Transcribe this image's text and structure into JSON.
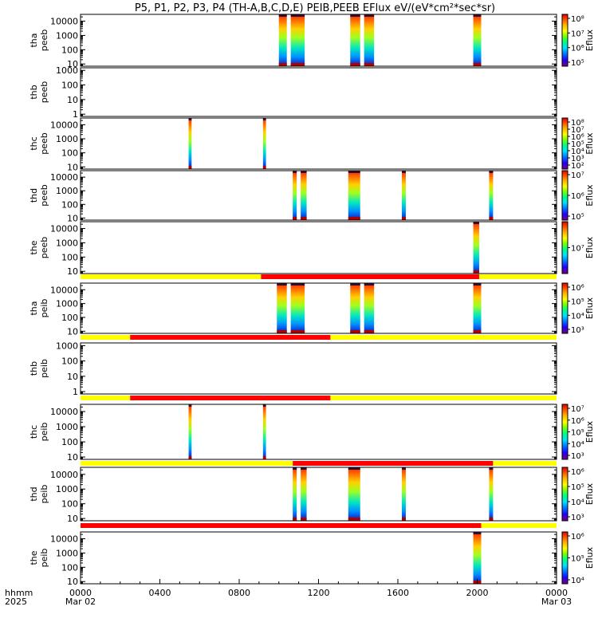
{
  "title": "P5, P1, P2, P3, P4 (TH-A,B,C,D,E) PEIB,PEEB EFlux eV/(eV*cm²*sec*sr)",
  "colors": {
    "background": "#ffffff",
    "axis": "#000000",
    "status_yellow": "#ffff00",
    "status_red": "#ff0000",
    "colormap": [
      "#7a007a",
      "#2000ff",
      "#0080ff",
      "#00e0ff",
      "#00ff80",
      "#80ff00",
      "#ffff00",
      "#ffb000",
      "#ff5000",
      "#e00000"
    ]
  },
  "footer": {
    "row1_label": "hhmm",
    "row2_label": "2025",
    "date_start": "Mar 02",
    "date_end": "Mar 03"
  },
  "chart_data": {
    "type": "heatmap",
    "x_range_hours": [
      0,
      24
    ],
    "x_ticks": [
      {
        "hours": 0,
        "label": "0000"
      },
      {
        "hours": 4,
        "label": "0400"
      },
      {
        "hours": 8,
        "label": "0800"
      },
      {
        "hours": 12,
        "label": "1200"
      },
      {
        "hours": 16,
        "label": "1600"
      },
      {
        "hours": 20,
        "label": "2000"
      },
      {
        "hours": 24,
        "label": "0000"
      }
    ],
    "panels": [
      {
        "id": "tha-peeb",
        "ylabel": [
          "tha",
          "peeb"
        ],
        "ylim": [
          7,
          30000
        ],
        "yticks": [
          {
            "v": 10,
            "label": "10"
          },
          {
            "v": 100,
            "label": "100"
          },
          {
            "v": 1000,
            "label": "1000"
          },
          {
            "v": 10000,
            "label": "10000"
          }
        ],
        "cb_title": "Eflux",
        "cb_ticks": [
          "10⁸",
          "10⁷",
          "10⁶",
          "10⁵"
        ],
        "status_bar": [],
        "data_intervals": [
          [
            10.0,
            10.4
          ],
          [
            10.6,
            11.3
          ],
          [
            13.6,
            14.1
          ],
          [
            14.3,
            14.8
          ],
          [
            19.8,
            20.2
          ]
        ]
      },
      {
        "id": "thb-peeb",
        "ylabel": [
          "thb",
          "peeb"
        ],
        "ylim": [
          0.7,
          1500
        ],
        "yticks": [
          {
            "v": 1,
            "label": "1"
          },
          {
            "v": 10,
            "label": "10"
          },
          {
            "v": 100,
            "label": "100"
          },
          {
            "v": 1000,
            "label": "1000"
          }
        ],
        "cb_title": "",
        "cb_ticks": [],
        "status_bar": [],
        "data_intervals": []
      },
      {
        "id": "thc-peeb",
        "ylabel": [
          "thc",
          "peeb"
        ],
        "ylim": [
          7,
          30000
        ],
        "yticks": [
          {
            "v": 10,
            "label": "10"
          },
          {
            "v": 100,
            "label": "100"
          },
          {
            "v": 1000,
            "label": "1000"
          },
          {
            "v": 10000,
            "label": "10000"
          }
        ],
        "cb_title": "Eflux",
        "cb_ticks": [
          "10⁸",
          "10⁷",
          "10⁶",
          "10⁵",
          "10⁴",
          "10³",
          "10²"
        ],
        "status_bar": [],
        "data_intervals": [
          [
            5.45,
            5.6
          ],
          [
            9.2,
            9.35
          ]
        ]
      },
      {
        "id": "thd-peeb",
        "ylabel": [
          "thd",
          "peeb"
        ],
        "ylim": [
          7,
          30000
        ],
        "yticks": [
          {
            "v": 10,
            "label": "10"
          },
          {
            "v": 100,
            "label": "100"
          },
          {
            "v": 1000,
            "label": "1000"
          },
          {
            "v": 10000,
            "label": "10000"
          }
        ],
        "cb_title": "Eflux",
        "cb_ticks": [
          "10⁷",
          "10⁶",
          "10⁵"
        ],
        "status_bar": [],
        "data_intervals": [
          [
            10.7,
            10.9
          ],
          [
            11.1,
            11.4
          ],
          [
            13.5,
            14.1
          ],
          [
            16.2,
            16.4
          ],
          [
            20.6,
            20.8
          ]
        ]
      },
      {
        "id": "the-peeb",
        "ylabel": [
          "the",
          "peeb"
        ],
        "ylim": [
          7,
          30000
        ],
        "yticks": [
          {
            "v": 10,
            "label": "10"
          },
          {
            "v": 100,
            "label": "100"
          },
          {
            "v": 1000,
            "label": "1000"
          },
          {
            "v": 10000,
            "label": "10000"
          }
        ],
        "cb_title": "Eflux",
        "cb_ticks": [
          "10⁷"
        ],
        "status_bar": [],
        "data_intervals": [
          [
            19.8,
            20.1
          ]
        ]
      },
      {
        "id": "tha-peib",
        "ylabel": [
          "tha",
          "peib"
        ],
        "ylim": [
          7,
          30000
        ],
        "yticks": [
          {
            "v": 10,
            "label": "10"
          },
          {
            "v": 100,
            "label": "100"
          },
          {
            "v": 1000,
            "label": "1000"
          },
          {
            "v": 10000,
            "label": "10000"
          }
        ],
        "cb_title": "Eflux",
        "cb_ticks": [
          "10⁶",
          "10⁵",
          "10⁴",
          "10³"
        ],
        "status_bar": [
          {
            "start": 0,
            "end": 9.1,
            "state": "yellow"
          },
          {
            "start": 9.1,
            "end": 20.1,
            "state": "red"
          },
          {
            "start": 20.1,
            "end": 24,
            "state": "yellow"
          }
        ],
        "data_intervals": [
          [
            9.9,
            10.4
          ],
          [
            10.6,
            11.3
          ],
          [
            13.6,
            14.1
          ],
          [
            14.3,
            14.8
          ],
          [
            19.8,
            20.2
          ]
        ]
      },
      {
        "id": "thb-peib",
        "ylabel": [
          "thb",
          "peib"
        ],
        "ylim": [
          0.7,
          1500
        ],
        "yticks": [
          {
            "v": 1,
            "label": "1"
          },
          {
            "v": 10,
            "label": "10"
          },
          {
            "v": 100,
            "label": "100"
          },
          {
            "v": 1000,
            "label": "1000"
          }
        ],
        "cb_title": "",
        "cb_ticks": [],
        "status_bar": [
          {
            "start": 0,
            "end": 2.5,
            "state": "yellow"
          },
          {
            "start": 2.5,
            "end": 12.6,
            "state": "red"
          },
          {
            "start": 12.6,
            "end": 24,
            "state": "yellow"
          }
        ],
        "data_intervals": []
      },
      {
        "id": "thc-peib",
        "ylabel": [
          "thc",
          "peib"
        ],
        "ylim": [
          7,
          30000
        ],
        "yticks": [
          {
            "v": 10,
            "label": "10"
          },
          {
            "v": 100,
            "label": "100"
          },
          {
            "v": 1000,
            "label": "1000"
          },
          {
            "v": 10000,
            "label": "10000"
          }
        ],
        "cb_title": "Eflux",
        "cb_ticks": [
          "10⁷",
          "10⁶",
          "10⁵",
          "10⁴",
          "10³"
        ],
        "status_bar": [
          {
            "start": 0,
            "end": 2.5,
            "state": "yellow"
          },
          {
            "start": 2.5,
            "end": 12.6,
            "state": "red"
          },
          {
            "start": 12.6,
            "end": 24,
            "state": "yellow"
          }
        ],
        "data_intervals": [
          [
            5.45,
            5.6
          ],
          [
            9.2,
            9.35
          ]
        ]
      },
      {
        "id": "thd-peib",
        "ylabel": [
          "thd",
          "peib"
        ],
        "ylim": [
          7,
          30000
        ],
        "yticks": [
          {
            "v": 10,
            "label": "10"
          },
          {
            "v": 100,
            "label": "100"
          },
          {
            "v": 1000,
            "label": "1000"
          },
          {
            "v": 10000,
            "label": "10000"
          }
        ],
        "cb_title": "Eflux",
        "cb_ticks": [
          "10⁶",
          "10⁵",
          "10⁴",
          "10³"
        ],
        "status_bar": [
          {
            "start": 0,
            "end": 10.7,
            "state": "yellow"
          },
          {
            "start": 10.7,
            "end": 20.8,
            "state": "red"
          },
          {
            "start": 20.8,
            "end": 24,
            "state": "yellow"
          }
        ],
        "data_intervals": [
          [
            10.7,
            10.9
          ],
          [
            11.1,
            11.4
          ],
          [
            13.5,
            14.1
          ],
          [
            16.2,
            16.4
          ],
          [
            20.6,
            20.8
          ]
        ]
      },
      {
        "id": "the-peib",
        "ylabel": [
          "the",
          "peib"
        ],
        "ylim": [
          7,
          30000
        ],
        "yticks": [
          {
            "v": 10,
            "label": "10"
          },
          {
            "v": 100,
            "label": "100"
          },
          {
            "v": 1000,
            "label": "1000"
          },
          {
            "v": 10000,
            "label": "10000"
          }
        ],
        "cb_title": "Eflux",
        "cb_ticks": [
          "10⁶",
          "10⁵",
          "10⁴"
        ],
        "status_bar": [
          {
            "start": 0,
            "end": 20.2,
            "state": "red"
          },
          {
            "start": 20.2,
            "end": 24,
            "state": "yellow"
          }
        ],
        "data_intervals": [
          [
            19.8,
            20.2
          ]
        ]
      }
    ]
  }
}
